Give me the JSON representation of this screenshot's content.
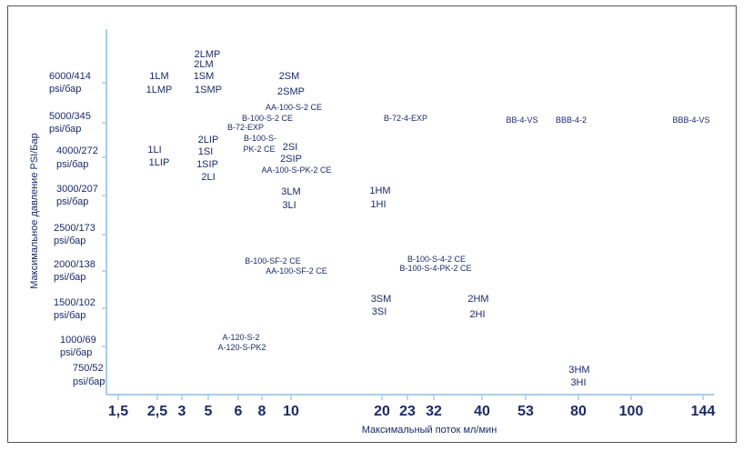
{
  "chart_data": {
    "type": "scatter",
    "title": "",
    "xlabel": "Максимальный поток мл/мин",
    "ylabel": "Максимальное давление PSI/Бар",
    "categorical_axes": true,
    "x_ticks": [
      "1,5",
      "2,5",
      "3",
      "5",
      "6",
      "8",
      "10",
      "20",
      "23",
      "32",
      "40",
      "53",
      "80",
      "100",
      "144"
    ],
    "y_ticks": [
      {
        "value": "6000/414",
        "unit": "psi/бар"
      },
      {
        "value": "5000/345",
        "unit": "psi/бар"
      },
      {
        "value": "4000/272",
        "unit": "psi/бар"
      },
      {
        "value": "3000/207",
        "unit": "psi/бар"
      },
      {
        "value": "2500/173",
        "unit": "psi/бар"
      },
      {
        "value": "2000/138",
        "unit": "psi/бар"
      },
      {
        "value": "1500/102",
        "unit": "psi/бар"
      },
      {
        "value": "1000/69",
        "unit": "psi/бар"
      },
      {
        "value": "750/52",
        "unit": "psi/бар"
      }
    ],
    "points": [
      {
        "label": "2LMP",
        "x": "5",
        "y": "6000/414"
      },
      {
        "label": "2LM",
        "x": "5",
        "y": "6000/414"
      },
      {
        "label": "1SM",
        "x": "5",
        "y": "6000/414"
      },
      {
        "label": "1SMP",
        "x": "5",
        "y": "6000/414"
      },
      {
        "label": "1LM",
        "x": "2,5",
        "y": "6000/414"
      },
      {
        "label": "1LMP",
        "x": "2,5",
        "y": "6000/414"
      },
      {
        "label": "2SM",
        "x": "10",
        "y": "6000/414"
      },
      {
        "label": "2SMP",
        "x": "10",
        "y": "6000/414"
      },
      {
        "label": "AA-100-S-2 CE",
        "x": "10",
        "y": "5000/345"
      },
      {
        "label": "B-100-S-2 CE",
        "x": "8",
        "y": "5000/345"
      },
      {
        "label": "B-72-EXP",
        "x": "6",
        "y": "5000/345"
      },
      {
        "label": "B-72-4-EXP",
        "x": "23",
        "y": "5000/345"
      },
      {
        "label": "BB-4-VS",
        "x": "53",
        "y": "5000/345"
      },
      {
        "label": "BBB-4-2",
        "x": "80",
        "y": "5000/345"
      },
      {
        "label": "BBB-4-VS",
        "x": "144",
        "y": "5000/345"
      },
      {
        "label": "2LIP",
        "x": "5",
        "y": "4000/272"
      },
      {
        "label": "1SI",
        "x": "5",
        "y": "4000/272"
      },
      {
        "label": "1SIP",
        "x": "5",
        "y": "4000/272"
      },
      {
        "label": "2LI",
        "x": "5",
        "y": "4000/272"
      },
      {
        "label": "1LI",
        "x": "2,5",
        "y": "4000/272"
      },
      {
        "label": "1LIP",
        "x": "2,5",
        "y": "4000/272"
      },
      {
        "label": "B-100-S-PK-2 CE",
        "x": "8",
        "y": "4000/272"
      },
      {
        "label": "2SI",
        "x": "10",
        "y": "4000/272"
      },
      {
        "label": "2SIP",
        "x": "10",
        "y": "4000/272"
      },
      {
        "label": "AA-100-S-PK-2 CE",
        "x": "10",
        "y": "4000/272"
      },
      {
        "label": "3LM",
        "x": "10",
        "y": "3000/207"
      },
      {
        "label": "3LI",
        "x": "10",
        "y": "3000/207"
      },
      {
        "label": "1HM",
        "x": "20",
        "y": "3000/207"
      },
      {
        "label": "1HI",
        "x": "20",
        "y": "3000/207"
      },
      {
        "label": "B-100-SF-2 CE",
        "x": "8",
        "y": "2000/138"
      },
      {
        "label": "AA-100-SF-2 CE",
        "x": "10",
        "y": "2000/138"
      },
      {
        "label": "B-100-S-4-2 CE",
        "x": "32",
        "y": "2000/138"
      },
      {
        "label": "B-100-S-4-PK-2 CE",
        "x": "32",
        "y": "2000/138"
      },
      {
        "label": "3SM",
        "x": "20",
        "y": "1500/102"
      },
      {
        "label": "3SI",
        "x": "20",
        "y": "1500/102"
      },
      {
        "label": "2HM",
        "x": "40",
        "y": "1500/102"
      },
      {
        "label": "2HI",
        "x": "40",
        "y": "1500/102"
      },
      {
        "label": "A-120-S-2",
        "x": "6",
        "y": "1000/69"
      },
      {
        "label": "A-120-S-PK2",
        "x": "6",
        "y": "1000/69"
      },
      {
        "label": "3HM",
        "x": "80",
        "y": "750/52"
      },
      {
        "label": "3HI",
        "x": "80",
        "y": "750/52"
      }
    ],
    "axis_color": "#a9cde8",
    "text_color": "#1a2a6c",
    "grid": false,
    "legend": "none"
  }
}
